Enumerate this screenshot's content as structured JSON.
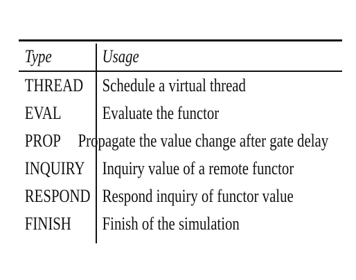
{
  "table": {
    "headers": {
      "type": "Type",
      "usage": "Usage"
    },
    "rows": [
      {
        "type": "THREAD",
        "usage": "Schedule a virtual thread"
      },
      {
        "type": "EVAL",
        "usage": "Evaluate the functor"
      },
      {
        "type": "PROP",
        "usage": "Propagate the value change after gate delay"
      },
      {
        "type": "INQUIRY",
        "usage": "Inquiry value of a remote functor"
      },
      {
        "type": "RESPOND",
        "usage": "Respond inquiry of functor value"
      },
      {
        "type": "FINISH",
        "usage": "Finish of the simulation"
      }
    ]
  }
}
